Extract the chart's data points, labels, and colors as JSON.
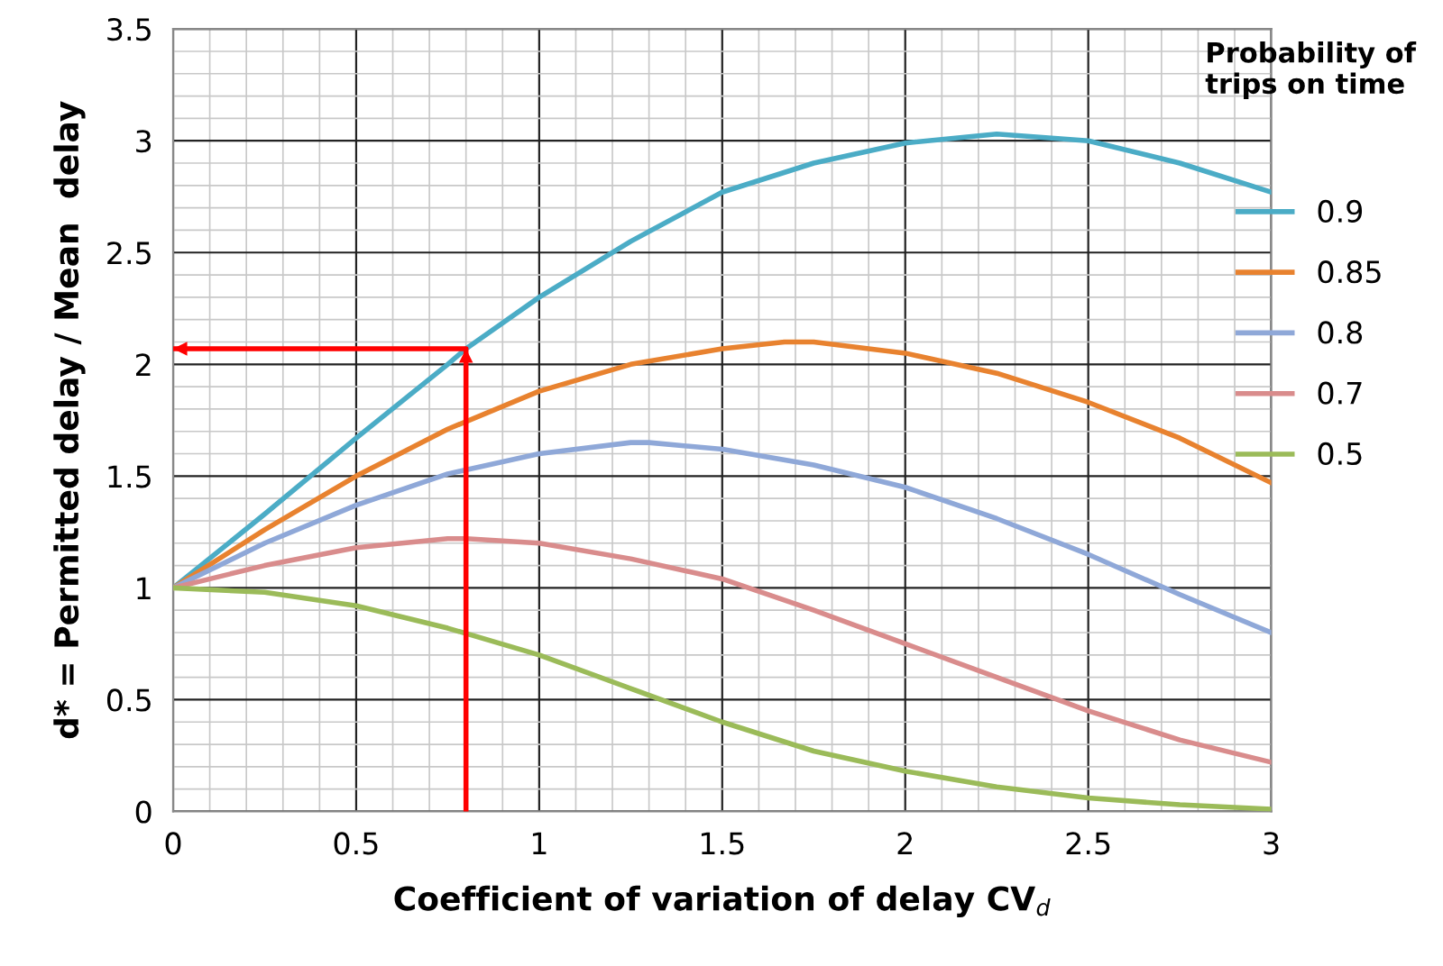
{
  "chart_data": {
    "type": "line",
    "xlabel": "Coefficient of variation of delay CV$_{d}$",
    "ylabel": "d* = Permitted delay / Mean  delay",
    "legend_title": "Probability of\ntrips on time",
    "xlim": [
      0,
      3
    ],
    "ylim": [
      0,
      3.5
    ],
    "xticks": [
      0,
      0.5,
      1,
      1.5,
      2,
      2.5,
      3
    ],
    "yticks": [
      0,
      0.5,
      1,
      1.5,
      2,
      2.5,
      3,
      3.5
    ],
    "grid": true,
    "legend": "right",
    "marker": "none",
    "line_style": "solid",
    "series": [
      {
        "name": "0.9",
        "color": "#4bacc6",
        "x": [
          0,
          0.25,
          0.5,
          0.75,
          0.8,
          1,
          1.25,
          1.5,
          1.75,
          2,
          2.25,
          2.5,
          2.75,
          3
        ],
        "values": [
          1,
          1.33,
          1.67,
          2.0,
          2.07,
          2.3,
          2.55,
          2.77,
          2.9,
          2.99,
          3.03,
          3.0,
          2.9,
          2.77
        ]
      },
      {
        "name": "0.85",
        "color": "#e8822f",
        "x": [
          0,
          0.25,
          0.5,
          0.75,
          1,
          1.25,
          1.5,
          1.67,
          1.75,
          2,
          2.25,
          2.5,
          2.75,
          3
        ],
        "values": [
          1,
          1.26,
          1.5,
          1.71,
          1.88,
          2.0,
          2.07,
          2.1,
          2.1,
          2.05,
          1.96,
          1.83,
          1.67,
          1.47
        ]
      },
      {
        "name": "0.8",
        "color": "#8fa8d8",
        "x": [
          0,
          0.25,
          0.5,
          0.75,
          1,
          1.25,
          1.3,
          1.5,
          1.75,
          2,
          2.25,
          2.5,
          2.75,
          3
        ],
        "values": [
          1,
          1.2,
          1.37,
          1.51,
          1.6,
          1.65,
          1.65,
          1.62,
          1.55,
          1.45,
          1.31,
          1.15,
          0.97,
          0.8
        ]
      },
      {
        "name": "0.7",
        "color": "#d98c8c",
        "x": [
          0,
          0.25,
          0.5,
          0.75,
          0.8,
          1,
          1.25,
          1.5,
          1.75,
          2,
          2.25,
          2.5,
          2.75,
          3
        ],
        "values": [
          1,
          1.1,
          1.18,
          1.22,
          1.22,
          1.2,
          1.13,
          1.04,
          0.9,
          0.75,
          0.6,
          0.45,
          0.32,
          0.22
        ]
      },
      {
        "name": "0.5",
        "color": "#9bbb59",
        "x": [
          0,
          0.25,
          0.5,
          0.75,
          1,
          1.25,
          1.5,
          1.75,
          2,
          2.25,
          2.5,
          2.75,
          3
        ],
        "values": [
          1,
          0.98,
          0.92,
          0.82,
          0.7,
          0.55,
          0.4,
          0.27,
          0.18,
          0.11,
          0.06,
          0.03,
          0.01
        ]
      },
      {
        "color": "#ff0000",
        "x": [
          0.8,
          0.8,
          0
        ],
        "values": [
          0,
          2.07,
          2.07
        ]
      }
    ]
  }
}
